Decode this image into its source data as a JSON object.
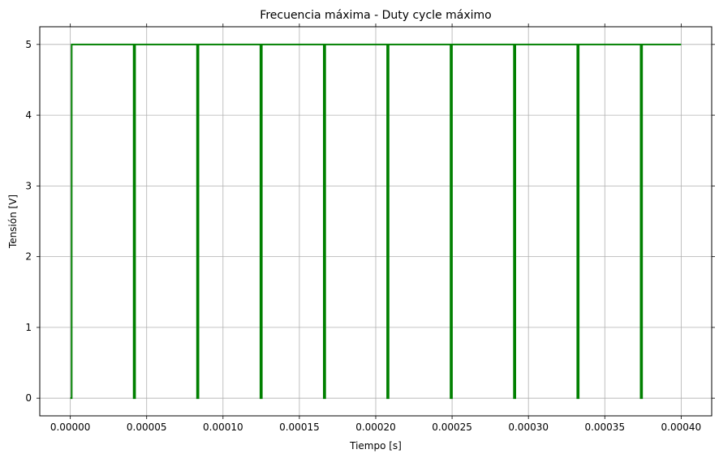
{
  "chart_data": {
    "type": "line",
    "title": "Frecuencia máxima - Duty cycle máximo",
    "xlabel": "Tiempo [s]",
    "ylabel": "Tensión [V]",
    "xlim": [
      -2e-05,
      0.00042
    ],
    "ylim": [
      -0.25,
      5.25
    ],
    "x_ticks": [
      0,
      5e-05,
      0.0001,
      0.00015,
      0.0002,
      0.00025,
      0.0003,
      0.00035,
      0.0004
    ],
    "x_tick_labels": [
      "0.00000",
      "0.00005",
      "0.00010",
      "0.00015",
      "0.00020",
      "0.00025",
      "0.00030",
      "0.00035",
      "0.00040"
    ],
    "y_ticks": [
      0,
      1,
      2,
      3,
      4,
      5
    ],
    "y_tick_labels": [
      "0",
      "1",
      "2",
      "3",
      "4",
      "5"
    ],
    "grid": true,
    "series": [
      {
        "color": "#008000",
        "high": 5,
        "low": 0,
        "x_end": 0.0004,
        "pulse_low_starts": [
          0,
          4.15e-05,
          8.3e-05,
          0.0001245,
          0.000166,
          0.0002075,
          0.000249,
          0.0002905,
          0.000332,
          0.0003735
        ],
        "pulse_low_width": 9e-07
      }
    ]
  }
}
